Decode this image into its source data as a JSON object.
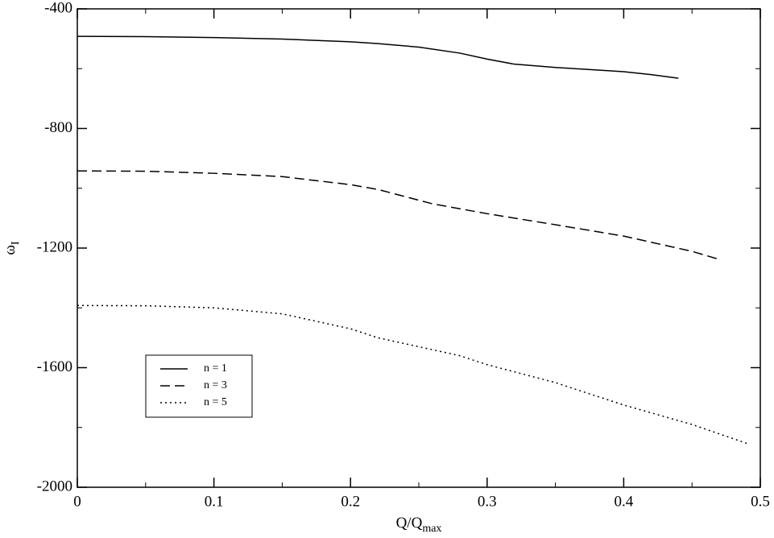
{
  "chart_data": {
    "type": "line",
    "x_label": "Q/Q",
    "x_label_sub": "max",
    "y_label": "ω",
    "y_label_sub": "I",
    "xlim": [
      0,
      0.5
    ],
    "xticks": [
      {
        "value": 0,
        "label": "0"
      },
      0.1,
      0.2,
      0.3,
      0.4,
      0.5
    ],
    "xminor": [
      0.05,
      0.15,
      0.25,
      0.35,
      0.45
    ],
    "ylim": [
      -2000,
      -400
    ],
    "yticks": [
      -2000,
      -1600,
      -1200,
      -800,
      -400
    ],
    "yminor": [
      -1800,
      -1400,
      -1000,
      -600
    ],
    "legend": "lower-left",
    "series": [
      {
        "name": "n = 1",
        "color": "#000000",
        "dash": "solid",
        "x": [
          0,
          0.05,
          0.1,
          0.15,
          0.2,
          0.22,
          0.25,
          0.28,
          0.3,
          0.32,
          0.35,
          0.4,
          0.42,
          0.44
        ],
        "values": [
          -492,
          -493,
          -496,
          -501,
          -510,
          -516,
          -528,
          -548,
          -568,
          -585,
          -596,
          -610,
          -620,
          -632
        ]
      },
      {
        "name": "n = 3",
        "color": "#000000",
        "dash": "dashed",
        "x": [
          0,
          0.05,
          0.1,
          0.15,
          0.2,
          0.22,
          0.26,
          0.3,
          0.35,
          0.4,
          0.45,
          0.47
        ],
        "values": [
          -942,
          -943,
          -950,
          -961,
          -988,
          -1004,
          -1052,
          -1085,
          -1122,
          -1160,
          -1211,
          -1238
        ]
      },
      {
        "name": "n = 5",
        "color": "#000000",
        "dash": "dotted",
        "x": [
          0,
          0.05,
          0.1,
          0.15,
          0.2,
          0.22,
          0.25,
          0.28,
          0.3,
          0.35,
          0.4,
          0.45,
          0.49
        ],
        "values": [
          -1392,
          -1393,
          -1400,
          -1420,
          -1470,
          -1500,
          -1530,
          -1560,
          -1590,
          -1650,
          -1725,
          -1790,
          -1853
        ]
      }
    ]
  }
}
